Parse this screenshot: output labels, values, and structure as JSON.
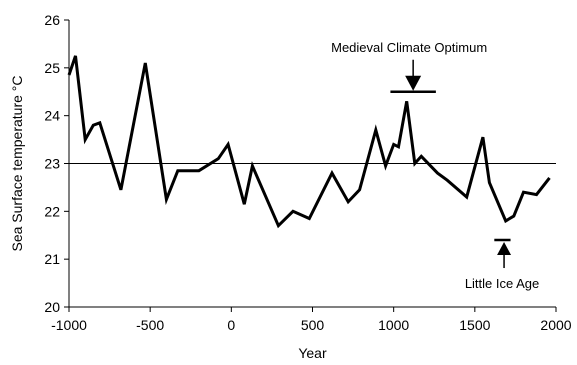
{
  "chart_data": {
    "type": "line",
    "title": "",
    "xlabel": "Year",
    "ylabel": "Sea Surface temperature °C",
    "xlim": [
      -1000,
      2000
    ],
    "ylim": [
      20,
      26
    ],
    "x_ticks": [
      -1000,
      -500,
      0,
      500,
      1000,
      1500,
      2000
    ],
    "y_ticks": [
      20,
      21,
      22,
      23,
      24,
      25,
      26
    ],
    "grid": false,
    "legend": "none",
    "reference_line": {
      "y": 23
    },
    "series": [
      {
        "color": "#000000",
        "points": [
          [
            -1000,
            24.85
          ],
          [
            -960,
            25.25
          ],
          [
            -900,
            23.5
          ],
          [
            -850,
            23.8
          ],
          [
            -810,
            23.85
          ],
          [
            -680,
            22.45
          ],
          [
            -530,
            25.1
          ],
          [
            -400,
            22.25
          ],
          [
            -330,
            22.85
          ],
          [
            -200,
            22.85
          ],
          [
            -80,
            23.1
          ],
          [
            -20,
            23.4
          ],
          [
            80,
            22.15
          ],
          [
            130,
            22.95
          ],
          [
            290,
            21.7
          ],
          [
            380,
            22.0
          ],
          [
            480,
            21.85
          ],
          [
            620,
            22.8
          ],
          [
            720,
            22.2
          ],
          [
            790,
            22.45
          ],
          [
            890,
            23.7
          ],
          [
            950,
            22.95
          ],
          [
            1000,
            23.4
          ],
          [
            1030,
            23.35
          ],
          [
            1080,
            24.3
          ],
          [
            1130,
            23.0
          ],
          [
            1170,
            23.15
          ],
          [
            1270,
            22.8
          ],
          [
            1330,
            22.65
          ],
          [
            1450,
            22.3
          ],
          [
            1550,
            23.55
          ],
          [
            1590,
            22.6
          ],
          [
            1690,
            21.8
          ],
          [
            1740,
            21.9
          ],
          [
            1800,
            22.4
          ],
          [
            1880,
            22.35
          ],
          [
            1960,
            22.7
          ]
        ]
      }
    ],
    "annotations": [
      {
        "text": "Medieval Climate Optimum",
        "x": 1120,
        "y": 24.5,
        "bar_x": [
          980,
          1260
        ],
        "arrow": "down"
      },
      {
        "text": "Little Ice Age",
        "x": 1680,
        "y": 21.4,
        "bar_x": [
          1620,
          1720
        ],
        "arrow": "up"
      }
    ]
  }
}
